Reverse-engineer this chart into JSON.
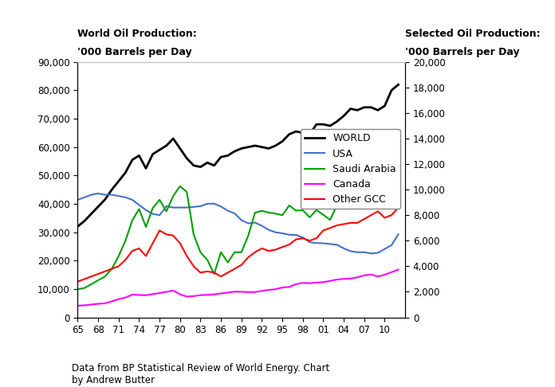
{
  "years": [
    65,
    66,
    67,
    68,
    69,
    70,
    71,
    72,
    73,
    74,
    75,
    76,
    77,
    78,
    79,
    80,
    81,
    82,
    83,
    84,
    85,
    86,
    87,
    88,
    89,
    90,
    91,
    92,
    93,
    94,
    95,
    96,
    97,
    98,
    99,
    100,
    101,
    102,
    103,
    104,
    105,
    106,
    107,
    108,
    109,
    110,
    111,
    112
  ],
  "world": [
    32000,
    34000,
    36500,
    39000,
    41500,
    45000,
    48000,
    51000,
    55500,
    57000,
    52500,
    57500,
    59000,
    60500,
    63000,
    59500,
    56000,
    53500,
    53000,
    54500,
    53500,
    56500,
    57000,
    58500,
    59500,
    60000,
    60500,
    60000,
    59500,
    60500,
    62000,
    64500,
    65500,
    65000,
    64500,
    68000,
    68000,
    67500,
    69000,
    71000,
    73500,
    73000,
    74000,
    74000,
    73000,
    74500,
    80000,
    82000
  ],
  "usa": [
    9200,
    9400,
    9600,
    9700,
    9600,
    9600,
    9500,
    9400,
    9200,
    8800,
    8400,
    8100,
    8000,
    8700,
    8600,
    8600,
    8600,
    8650,
    8700,
    8900,
    8900,
    8680,
    8350,
    8140,
    7610,
    7360,
    7420,
    7170,
    6850,
    6660,
    6580,
    6470,
    6450,
    6250,
    5880,
    5820,
    5800,
    5740,
    5680,
    5400,
    5180,
    5100,
    5100,
    5000,
    5050,
    5350,
    5650,
    6500
  ],
  "saudi_arabia": [
    2200,
    2300,
    2600,
    2900,
    3200,
    3800,
    4800,
    6000,
    7600,
    8480,
    7080,
    8560,
    9200,
    8300,
    9500,
    10270,
    9810,
    6480,
    5090,
    4500,
    3400,
    5100,
    4300,
    5100,
    5100,
    6400,
    8200,
    8340,
    8200,
    8120,
    8000,
    8760,
    8360,
    8390,
    7833,
    8404,
    8030,
    7634,
    8775,
    8493,
    9550,
    9520,
    8720,
    9200,
    9710,
    8920,
    9500,
    9800
  ],
  "canada": [
    920,
    940,
    1000,
    1060,
    1100,
    1250,
    1430,
    1550,
    1780,
    1750,
    1730,
    1820,
    1900,
    2000,
    2100,
    1800,
    1630,
    1660,
    1740,
    1760,
    1800,
    1870,
    1940,
    2010,
    2000,
    1970,
    1980,
    2070,
    2150,
    2200,
    2340,
    2380,
    2600,
    2700,
    2670,
    2720,
    2760,
    2850,
    2960,
    3010,
    3040,
    3130,
    3290,
    3350,
    3200,
    3340,
    3530,
    3740
  ],
  "other_gcc": [
    2800,
    3000,
    3200,
    3400,
    3600,
    3800,
    4000,
    4500,
    5200,
    5400,
    4800,
    5800,
    6800,
    6500,
    6400,
    5800,
    4800,
    4000,
    3500,
    3600,
    3500,
    3200,
    3500,
    3800,
    4100,
    4700,
    5100,
    5400,
    5200,
    5300,
    5500,
    5700,
    6100,
    6200,
    6000,
    6200,
    6800,
    7000,
    7200,
    7300,
    7400,
    7400,
    7700,
    8000,
    8300,
    7800,
    8000,
    8600
  ],
  "world_color": "#000000",
  "usa_color": "#4472C4",
  "saudi_color": "#00A000",
  "canada_color": "#FF00FF",
  "gcc_color": "#FF0000",
  "left_ylim": [
    0,
    90000
  ],
  "right_ylim": [
    0,
    20000
  ],
  "left_yticks": [
    0,
    10000,
    20000,
    30000,
    40000,
    50000,
    60000,
    70000,
    80000,
    90000
  ],
  "right_yticks": [
    0,
    2000,
    4000,
    6000,
    8000,
    10000,
    12000,
    14000,
    16000,
    18000,
    20000
  ],
  "xtick_labels": [
    "65",
    "68",
    "71",
    "74",
    "77",
    "80",
    "83",
    "86",
    "89",
    "92",
    "95",
    "98",
    "01",
    "04",
    "07",
    "10"
  ],
  "xtick_positions": [
    65,
    68,
    71,
    74,
    77,
    80,
    83,
    86,
    89,
    92,
    95,
    98,
    101,
    104,
    107,
    110
  ],
  "left_label_line1": "World Oil Production:",
  "left_label_line2": "'000 Barrels per Day",
  "right_label_line1": "Selected Oil Production:",
  "right_label_line2": "'000 Barrels per Day",
  "footnote": "Data from BP Statistical Review of World Energy. Chart\nby Andrew Butter",
  "bg_color": "#FFFFFF",
  "legend_entries": [
    "WORLD",
    "USA",
    "Saudi Arabia",
    "Canada",
    "Other GCC"
  ]
}
